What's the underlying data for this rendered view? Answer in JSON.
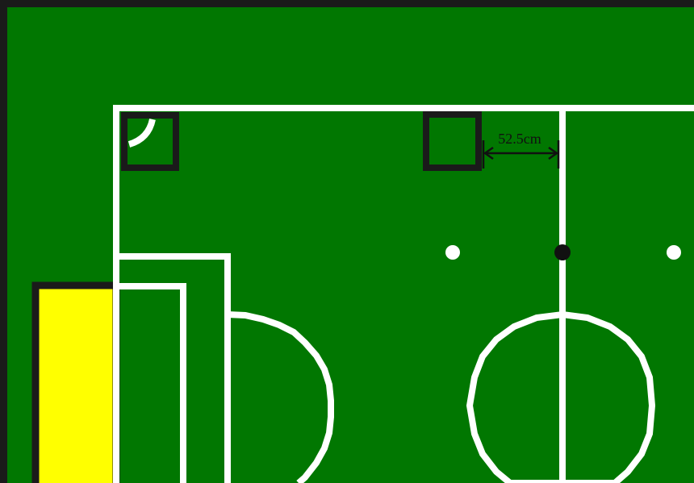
{
  "diagram": {
    "measurement": {
      "label": "52.5cm"
    }
  },
  "colors": {
    "field": "#017701",
    "line": "#ffffff",
    "border": "#1a1a1a",
    "goal": "#ffff00",
    "marker": "#111111"
  },
  "icons": {
    "arrow": "double-headed-arrow",
    "spot": "circle"
  }
}
